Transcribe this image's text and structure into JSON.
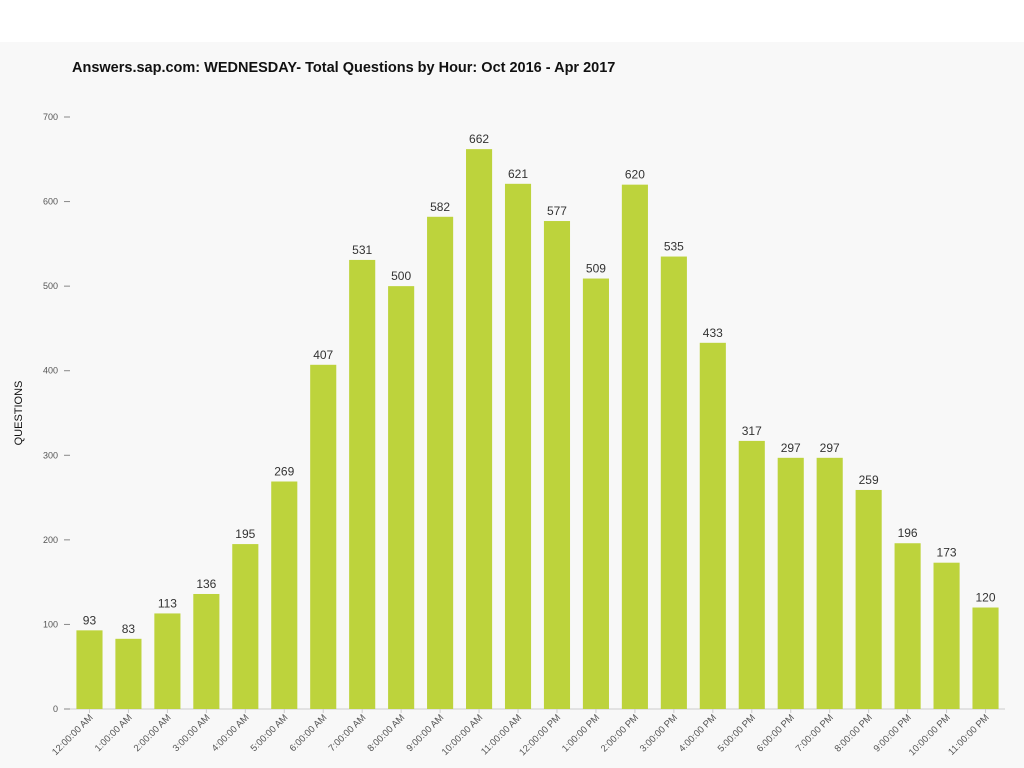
{
  "chart_data": {
    "type": "bar",
    "title": "Answers.sap.com: WEDNESDAY- Total Questions by Hour: Oct 2016 - Apr 2017",
    "ylabel": "QUESTIONS",
    "xlabel": "",
    "ylim": [
      0,
      700
    ],
    "yticks": [
      0,
      100,
      200,
      300,
      400,
      500,
      600,
      700
    ],
    "grid": false,
    "bar_color": "#bdd33c",
    "categories": [
      "12:00:00 AM",
      "1:00:00 AM",
      "2:00:00 AM",
      "3:00:00 AM",
      "4:00:00 AM",
      "5:00:00 AM",
      "6:00:00 AM",
      "7:00:00 AM",
      "8:00:00 AM",
      "9:00:00 AM",
      "10:00:00 AM",
      "11:00:00 AM",
      "12:00:00 PM",
      "1:00:00 PM",
      "2:00:00 PM",
      "3:00:00 PM",
      "4:00:00 PM",
      "5:00:00 PM",
      "6:00:00 PM",
      "7:00:00 PM",
      "8:00:00 PM",
      "9:00:00 PM",
      "10:00:00 PM",
      "11:00:00 PM"
    ],
    "values": [
      93,
      83,
      113,
      136,
      195,
      269,
      407,
      531,
      500,
      582,
      662,
      621,
      577,
      509,
      620,
      535,
      433,
      317,
      297,
      297,
      259,
      196,
      173,
      120
    ]
  }
}
